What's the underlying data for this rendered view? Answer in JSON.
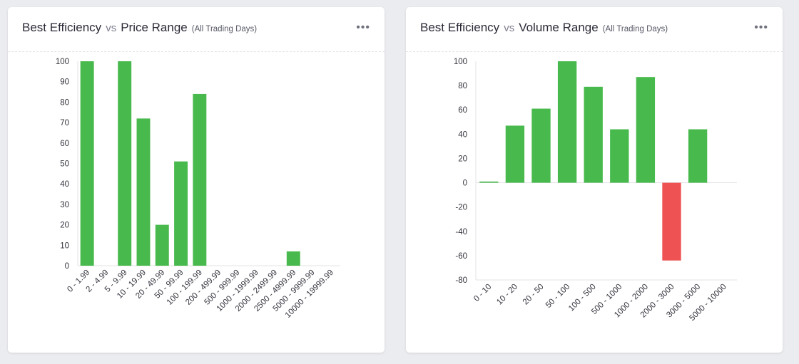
{
  "colors": {
    "positive": "#48b94c",
    "negative": "#ee5253"
  },
  "cards": [
    {
      "title_main": "Best Efficiency",
      "title_vs": "vs",
      "title_range": "Price Range",
      "subtitle": "(All Trading Days)",
      "menu_icon": "ellipsis-icon",
      "menu_label": "•••"
    },
    {
      "title_main": "Best Efficiency",
      "title_vs": "vs",
      "title_range": "Volume Range",
      "subtitle": "(All Trading Days)",
      "menu_icon": "ellipsis-icon",
      "menu_label": "•••"
    }
  ],
  "chart_data": [
    {
      "type": "bar",
      "categories": [
        "0 - 1.99",
        "2 - 4.99",
        "5 - 9.99",
        "10 - 19.99",
        "20 - 49.99",
        "50 - 99.99",
        "100 - 199.99",
        "200 - 499.99",
        "500 - 999.99",
        "1000 - 1999.99",
        "2000 - 2499.99",
        "2500 - 4999.99",
        "5000 - 9999.99",
        "10000 - 19999.99"
      ],
      "values": [
        100,
        0,
        100,
        72,
        20,
        51,
        84,
        0,
        0,
        0,
        0,
        7,
        0,
        0
      ],
      "ylim": [
        0,
        100
      ],
      "yticks": [
        0,
        10,
        20,
        30,
        40,
        50,
        60,
        70,
        80,
        90,
        100
      ],
      "title": "",
      "xlabel": "",
      "ylabel": "",
      "grid": false
    },
    {
      "type": "bar",
      "categories": [
        "0 - 10",
        "10 - 20",
        "20 - 50",
        "50 - 100",
        "100 - 500",
        "500 - 1000",
        "1000 - 2000",
        "2000 - 3000",
        "3000 - 5000",
        "5000 - 10000"
      ],
      "values": [
        1,
        47,
        61,
        100,
        79,
        44,
        87,
        -64,
        44,
        0
      ],
      "ylim": [
        -80,
        100
      ],
      "yticks": [
        -80,
        -60,
        -40,
        -20,
        0,
        20,
        40,
        60,
        80,
        100
      ],
      "title": "",
      "xlabel": "",
      "ylabel": "",
      "grid": false
    }
  ]
}
